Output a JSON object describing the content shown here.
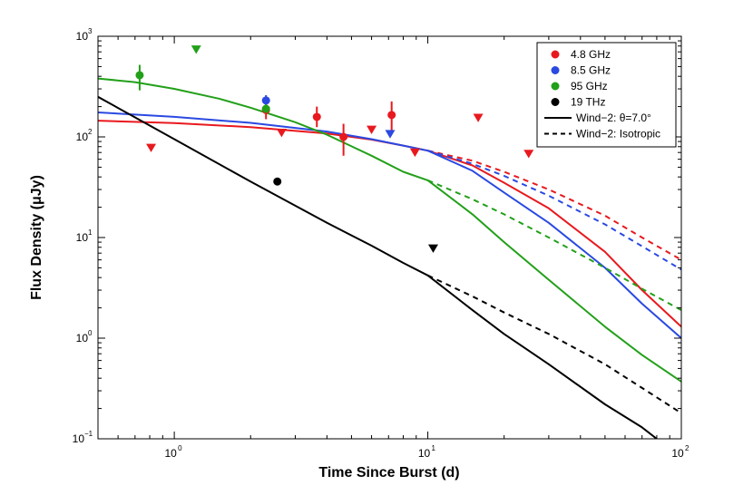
{
  "chart_data": {
    "type": "scatter",
    "title": "",
    "xlabel": "Time Since Burst (d)",
    "ylabel": "Flux Density (μJy)",
    "xscale": "log",
    "yscale": "log",
    "xlim": [
      0.5,
      100
    ],
    "ylim": [
      0.1,
      1000
    ],
    "x_ticks": [
      {
        "value": 1,
        "base": "10",
        "exp": "0"
      },
      {
        "value": 10,
        "base": "10",
        "exp": "1"
      },
      {
        "value": 100,
        "base": "10",
        "exp": "2"
      }
    ],
    "y_ticks": [
      {
        "value": 0.1,
        "base": "10",
        "exp": "−1"
      },
      {
        "value": 1,
        "base": "10",
        "exp": "0"
      },
      {
        "value": 10,
        "base": "10",
        "exp": "1"
      },
      {
        "value": 100,
        "base": "10",
        "exp": "2"
      },
      {
        "value": 1000,
        "base": "10",
        "exp": "3"
      }
    ],
    "colors": {
      "red": "#e8191e",
      "blue": "#2a49e2",
      "green": "#22a019",
      "black": "#000000"
    },
    "detections": [
      {
        "series": "4.8 GHz",
        "x": 2.3,
        "y": 185,
        "yerr": [
          150,
          215
        ]
      },
      {
        "series": "4.8 GHz",
        "x": 3.65,
        "y": 158,
        "yerr": [
          125,
          200
        ]
      },
      {
        "series": "4.8 GHz",
        "x": 4.65,
        "y": 100,
        "yerr": [
          65,
          135
        ]
      },
      {
        "series": "4.8 GHz",
        "x": 7.2,
        "y": 165,
        "yerr": [
          110,
          225
        ]
      },
      {
        "series": "8.5 GHz",
        "x": 2.3,
        "y": 230,
        "yerr": [
          205,
          260
        ]
      },
      {
        "series": "95 GHz",
        "x": 0.73,
        "y": 410,
        "yerr": [
          290,
          520
        ]
      },
      {
        "series": "95 GHz",
        "x": 2.3,
        "y": 190,
        "yerr": [
          175,
          210
        ]
      },
      {
        "series": "19 THz",
        "x": 2.55,
        "y": 36
      }
    ],
    "upper_limits": [
      {
        "series": "4.8 GHz",
        "x": 0.81,
        "y": 78
      },
      {
        "series": "4.8 GHz",
        "x": 2.65,
        "y": 110
      },
      {
        "series": "4.8 GHz",
        "x": 6.0,
        "y": 118
      },
      {
        "series": "4.8 GHz",
        "x": 8.9,
        "y": 70
      },
      {
        "series": "4.8 GHz",
        "x": 15.8,
        "y": 155
      },
      {
        "series": "4.8 GHz",
        "x": 25.0,
        "y": 68
      },
      {
        "series": "8.5 GHz",
        "x": 7.1,
        "y": 107
      },
      {
        "series": "95 GHz",
        "x": 1.22,
        "y": 740
      },
      {
        "series": "19 THz",
        "x": 10.5,
        "y": 7.8
      }
    ],
    "models": [
      {
        "name": "Wind-2: θ=7.0°",
        "series": "4.8 GHz",
        "style": "solid",
        "x": [
          0.5,
          1,
          2,
          4,
          6,
          8,
          10,
          15,
          20,
          30,
          50,
          70,
          100
        ],
        "y": [
          145,
          137,
          125,
          108,
          94,
          82,
          73,
          52,
          35,
          19.5,
          7.2,
          3.0,
          1.3
        ]
      },
      {
        "name": "Wind-2: Isotropic",
        "series": "4.8 GHz",
        "style": "dashed",
        "x": [
          10,
          15,
          20,
          30,
          50,
          70,
          100
        ],
        "y": [
          73,
          58,
          45,
          30,
          16.5,
          10,
          6.0
        ]
      },
      {
        "name": "Wind-2: θ=7.0°",
        "series": "8.5 GHz",
        "style": "solid",
        "x": [
          0.5,
          1,
          2,
          4,
          6,
          8,
          10,
          15,
          20,
          30,
          50,
          70,
          100
        ],
        "y": [
          175,
          158,
          138,
          113,
          95,
          82,
          73,
          46,
          28,
          14,
          5.0,
          2.2,
          1.0
        ]
      },
      {
        "name": "Wind-2: Isotropic",
        "series": "8.5 GHz",
        "style": "dashed",
        "x": [
          10,
          15,
          20,
          30,
          50,
          70,
          100
        ],
        "y": [
          73,
          54,
          41,
          26,
          13.5,
          8.2,
          4.8
        ]
      },
      {
        "name": "Wind-2: θ=7.0°",
        "series": "95 GHz",
        "style": "solid",
        "x": [
          0.5,
          0.7,
          1,
          1.5,
          2,
          3,
          4,
          6,
          8,
          10,
          15,
          20,
          30,
          50,
          70,
          100
        ],
        "y": [
          380,
          350,
          300,
          240,
          195,
          140,
          105,
          65,
          45,
          37,
          17,
          9,
          3.8,
          1.3,
          0.68,
          0.37
        ]
      },
      {
        "name": "Wind-2: Isotropic",
        "series": "95 GHz",
        "style": "dashed",
        "x": [
          10,
          15,
          20,
          30,
          50,
          70,
          100
        ],
        "y": [
          37,
          24,
          17,
          10,
          5.0,
          3.1,
          1.9
        ]
      },
      {
        "name": "Wind-2: θ=7.0°",
        "series": "19 THz",
        "style": "solid",
        "x": [
          0.5,
          1,
          2,
          4,
          6,
          8,
          10,
          15,
          20,
          30,
          50,
          70,
          80
        ],
        "y": [
          250,
          95,
          36,
          14,
          8.3,
          5.6,
          4.2,
          1.9,
          1.1,
          0.55,
          0.22,
          0.13,
          0.1
        ]
      },
      {
        "name": "Wind-2: Isotropic",
        "series": "19 THz",
        "style": "dashed",
        "x": [
          10,
          15,
          20,
          30,
          50,
          70,
          100
        ],
        "y": [
          4.2,
          2.6,
          1.8,
          1.1,
          0.55,
          0.32,
          0.18
        ]
      }
    ],
    "legend": {
      "position": "top-right",
      "entries": [
        {
          "label": "4.8 GHz",
          "kind": "marker",
          "color": "#e8191e"
        },
        {
          "label": "8.5 GHz",
          "kind": "marker",
          "color": "#2a49e2"
        },
        {
          "label": "95 GHz",
          "kind": "marker",
          "color": "#22a019"
        },
        {
          "label": "19 THz",
          "kind": "marker",
          "color": "#000000"
        },
        {
          "label": "Wind−2: θ=7.0°",
          "kind": "line",
          "style": "solid",
          "color": "#000000"
        },
        {
          "label": "Wind−2: Isotropic",
          "kind": "line",
          "style": "dashed",
          "color": "#000000"
        }
      ]
    }
  }
}
